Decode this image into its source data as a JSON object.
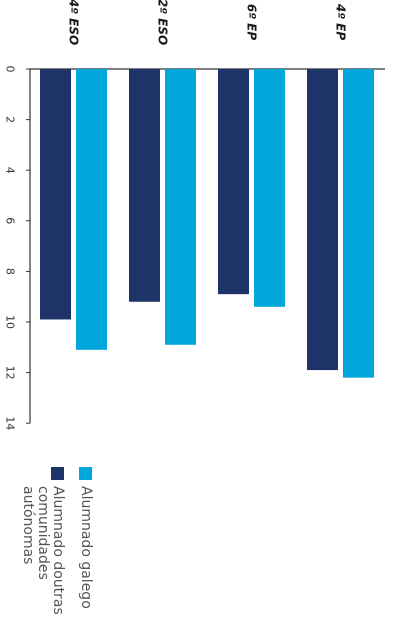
{
  "chart_data": {
    "type": "bar",
    "orientation": "rotated-90-clockwise",
    "categories": [
      "4º ESO",
      "2º ESO",
      "6º EP",
      "4º EP"
    ],
    "series": [
      {
        "name": "Alumnado doutras comunidades autónomas",
        "values": [
          9.9,
          9.2,
          8.9,
          11.9
        ],
        "color": "#1e3468"
      },
      {
        "name": "Alumnado galego",
        "values": [
          11.1,
          10.9,
          9.4,
          12.2
        ],
        "color": "#00a6dc"
      }
    ],
    "ylim": [
      0,
      14
    ],
    "yticks": [
      0,
      2,
      4,
      6,
      8,
      10,
      12,
      14
    ],
    "grid": false,
    "legend_position": "bottom-left"
  },
  "legend": {
    "items": [
      {
        "lines": [
          "Alumnado galego"
        ],
        "color": "#00a6dc"
      },
      {
        "lines": [
          "Alumnado doutras",
          "comunidades",
          "autónomas"
        ],
        "color": "#1e3468"
      }
    ]
  }
}
